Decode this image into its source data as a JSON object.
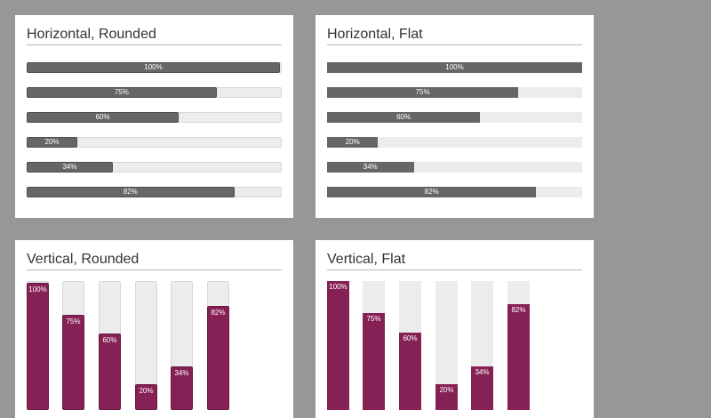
{
  "panels": {
    "horizontal_rounded": {
      "title": "Horizontal, Rounded"
    },
    "horizontal_flat": {
      "title": "Horizontal, Flat"
    },
    "vertical_rounded": {
      "title": "Vertical, Rounded"
    },
    "vertical_flat": {
      "title": "Vertical, Flat"
    }
  },
  "progress": [
    {
      "value": 100,
      "label": "100%"
    },
    {
      "value": 75,
      "label": "75%"
    },
    {
      "value": 60,
      "label": "60%"
    },
    {
      "value": 20,
      "label": "20%"
    },
    {
      "value": 34,
      "label": "34%"
    },
    {
      "value": 82,
      "label": "82%"
    }
  ],
  "colors": {
    "background": "#979797",
    "horizontal_fill": "#666666",
    "vertical_fill": "#852155",
    "track": "#ececec"
  }
}
